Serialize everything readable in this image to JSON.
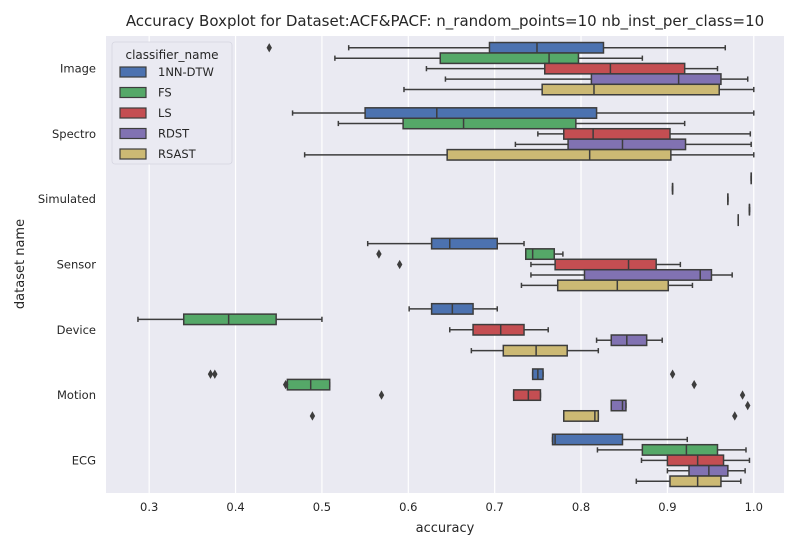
{
  "chart_data": {
    "type": "boxplot",
    "orientation": "horizontal",
    "title": "Accuracy Boxplot for Dataset:ACF&PACF: n_random_points=10 nb_inst_per_class=10",
    "xlabel": "accuracy",
    "ylabel": "dataset name",
    "xlim": [
      0.25,
      1.035
    ],
    "xticks": [
      "0.3",
      "0.4",
      "0.5",
      "0.6",
      "0.7",
      "0.8",
      "0.9",
      "1.0"
    ],
    "grid": true,
    "legend": {
      "title": "classifier_name",
      "placement": "top-left"
    },
    "categories": [
      "Image",
      "Spectro",
      "Simulated",
      "Sensor",
      "Device",
      "Motion",
      "ECG"
    ],
    "series": [
      {
        "name": "1NN-DTW",
        "color": "#4c72b0",
        "boxes": [
          {
            "whislo": 0.531,
            "q1": 0.694,
            "med": 0.749,
            "q3": 0.826,
            "whishi": 0.967,
            "fliers": [
              0.439
            ]
          },
          {
            "whislo": 0.466,
            "q1": 0.55,
            "med": 0.633,
            "q3": 0.818,
            "whishi": 1.0,
            "fliers": []
          },
          {
            "whislo": 0.997,
            "q1": 0.997,
            "med": 0.997,
            "q3": 0.997,
            "whishi": 0.997,
            "fliers": []
          },
          {
            "whislo": 0.553,
            "q1": 0.627,
            "med": 0.648,
            "q3": 0.703,
            "whishi": 0.734,
            "fliers": []
          },
          {
            "whislo": 0.601,
            "q1": 0.627,
            "med": 0.651,
            "q3": 0.675,
            "whishi": 0.703,
            "fliers": []
          },
          {
            "whislo": 0.744,
            "q1": 0.744,
            "med": 0.75,
            "q3": 0.756,
            "whishi": 0.756,
            "fliers": [
              0.376,
              0.371,
              0.906
            ]
          },
          {
            "whislo": 0.767,
            "q1": 0.767,
            "med": 0.77,
            "q3": 0.848,
            "whishi": 0.923,
            "fliers": []
          }
        ]
      },
      {
        "name": "FS",
        "color": "#55a868",
        "boxes": [
          {
            "whislo": 0.515,
            "q1": 0.637,
            "med": 0.763,
            "q3": 0.797,
            "whishi": 0.871,
            "fliers": []
          },
          {
            "whislo": 0.519,
            "q1": 0.594,
            "med": 0.664,
            "q3": 0.794,
            "whishi": 0.92,
            "fliers": []
          },
          {
            "whislo": 0.906,
            "q1": 0.906,
            "med": 0.906,
            "q3": 0.906,
            "whishi": 0.906,
            "fliers": []
          },
          {
            "whislo": 0.736,
            "q1": 0.736,
            "med": 0.744,
            "q3": 0.769,
            "whishi": 0.779,
            "fliers": [
              0.566
            ]
          },
          {
            "whislo": 0.287,
            "q1": 0.34,
            "med": 0.392,
            "q3": 0.447,
            "whishi": 0.5,
            "fliers": []
          },
          {
            "whislo": 0.46,
            "q1": 0.46,
            "med": 0.487,
            "q3": 0.509,
            "whishi": 0.509,
            "fliers": [
              0.458,
              0.931
            ]
          },
          {
            "whislo": 0.819,
            "q1": 0.871,
            "med": 0.922,
            "q3": 0.958,
            "whishi": 0.991,
            "fliers": []
          }
        ]
      },
      {
        "name": "LS",
        "color": "#c44e52",
        "boxes": [
          {
            "whislo": 0.621,
            "q1": 0.758,
            "med": 0.834,
            "q3": 0.92,
            "whishi": 0.958,
            "fliers": []
          },
          {
            "whislo": 0.75,
            "q1": 0.78,
            "med": 0.814,
            "q3": 0.903,
            "whishi": 0.996,
            "fliers": []
          },
          {
            "whislo": 0.97,
            "q1": 0.97,
            "med": 0.97,
            "q3": 0.97,
            "whishi": 0.97,
            "fliers": []
          },
          {
            "whislo": 0.742,
            "q1": 0.77,
            "med": 0.855,
            "q3": 0.887,
            "whishi": 0.915,
            "fliers": [
              0.59
            ]
          },
          {
            "whislo": 0.648,
            "q1": 0.675,
            "med": 0.707,
            "q3": 0.734,
            "whishi": 0.762,
            "fliers": []
          },
          {
            "whislo": 0.722,
            "q1": 0.722,
            "med": 0.739,
            "q3": 0.753,
            "whishi": 0.753,
            "fliers": [
              0.569,
              0.987
            ]
          },
          {
            "whislo": 0.87,
            "q1": 0.9,
            "med": 0.935,
            "q3": 0.965,
            "whishi": 0.995,
            "fliers": []
          }
        ]
      },
      {
        "name": "RDST",
        "color": "#8172b2",
        "boxes": [
          {
            "whislo": 0.643,
            "q1": 0.812,
            "med": 0.913,
            "q3": 0.962,
            "whishi": 0.993,
            "fliers": []
          },
          {
            "whislo": 0.724,
            "q1": 0.785,
            "med": 0.848,
            "q3": 0.921,
            "whishi": 0.997,
            "fliers": []
          },
          {
            "whislo": 0.995,
            "q1": 0.995,
            "med": 0.995,
            "q3": 0.995,
            "whishi": 0.995,
            "fliers": []
          },
          {
            "whislo": 0.742,
            "q1": 0.804,
            "med": 0.938,
            "q3": 0.951,
            "whishi": 0.975,
            "fliers": []
          },
          {
            "whislo": 0.818,
            "q1": 0.835,
            "med": 0.853,
            "q3": 0.876,
            "whishi": 0.894,
            "fliers": []
          },
          {
            "whislo": 0.835,
            "q1": 0.835,
            "med": 0.848,
            "q3": 0.852,
            "whishi": 0.852,
            "fliers": [
              0.993
            ]
          },
          {
            "whislo": 0.9,
            "q1": 0.925,
            "med": 0.948,
            "q3": 0.97,
            "whishi": 0.99,
            "fliers": []
          }
        ]
      },
      {
        "name": "RSAST",
        "color": "#ccb974",
        "boxes": [
          {
            "whislo": 0.595,
            "q1": 0.755,
            "med": 0.815,
            "q3": 0.96,
            "whishi": 1.0,
            "fliers": []
          },
          {
            "whislo": 0.48,
            "q1": 0.645,
            "med": 0.81,
            "q3": 0.904,
            "whishi": 1.0,
            "fliers": []
          },
          {
            "whislo": 0.982,
            "q1": 0.982,
            "med": 0.982,
            "q3": 0.982,
            "whishi": 0.982,
            "fliers": []
          },
          {
            "whislo": 0.731,
            "q1": 0.773,
            "med": 0.842,
            "q3": 0.901,
            "whishi": 0.929,
            "fliers": []
          },
          {
            "whislo": 0.673,
            "q1": 0.71,
            "med": 0.748,
            "q3": 0.784,
            "whishi": 0.82,
            "fliers": []
          },
          {
            "whislo": 0.78,
            "q1": 0.78,
            "med": 0.816,
            "q3": 0.82,
            "whishi": 0.82,
            "fliers": [
              0.489,
              0.978
            ]
          },
          {
            "whislo": 0.864,
            "q1": 0.903,
            "med": 0.935,
            "q3": 0.962,
            "whishi": 0.985,
            "fliers": []
          }
        ]
      }
    ]
  }
}
